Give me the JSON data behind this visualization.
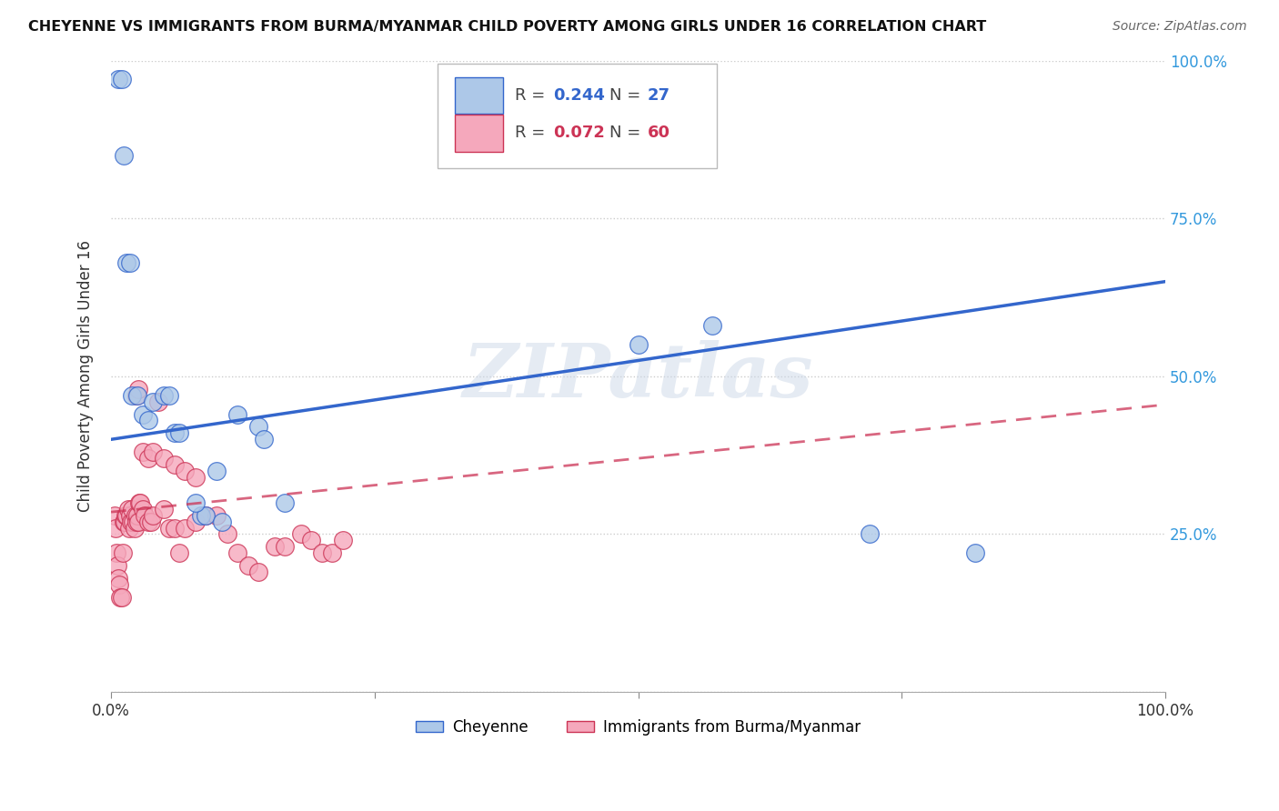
{
  "title": "CHEYENNE VS IMMIGRANTS FROM BURMA/MYANMAR CHILD POVERTY AMONG GIRLS UNDER 16 CORRELATION CHART",
  "source": "Source: ZipAtlas.com",
  "ylabel": "Child Poverty Among Girls Under 16",
  "cheyenne_R": "0.244",
  "cheyenne_N": "27",
  "burma_R": "0.072",
  "burma_N": "60",
  "cheyenne_color": "#adc8e8",
  "burma_color": "#f5a8bc",
  "cheyenne_line_color": "#3366cc",
  "burma_line_color": "#cc3355",
  "watermark": "ZIPatlas",
  "background_color": "#ffffff",
  "xlim": [
    0.0,
    1.0
  ],
  "ylim": [
    0.0,
    1.0
  ],
  "xticks": [
    0.0,
    0.25,
    0.5,
    0.75,
    1.0
  ],
  "yticks": [
    0.0,
    0.25,
    0.5,
    0.75,
    1.0
  ],
  "cheyenne_x": [
    0.007,
    0.01,
    0.012,
    0.015,
    0.018,
    0.02,
    0.025,
    0.03,
    0.035,
    0.04,
    0.05,
    0.055,
    0.06,
    0.065,
    0.085,
    0.09,
    0.105,
    0.12,
    0.14,
    0.145,
    0.165,
    0.5,
    0.57,
    0.72,
    0.82,
    0.1,
    0.08
  ],
  "cheyenne_y": [
    0.97,
    0.97,
    0.85,
    0.68,
    0.68,
    0.47,
    0.47,
    0.44,
    0.43,
    0.46,
    0.47,
    0.47,
    0.41,
    0.41,
    0.28,
    0.28,
    0.27,
    0.44,
    0.42,
    0.4,
    0.3,
    0.55,
    0.58,
    0.25,
    0.22,
    0.35,
    0.3
  ],
  "burma_x": [
    0.003,
    0.004,
    0.005,
    0.006,
    0.007,
    0.008,
    0.009,
    0.01,
    0.011,
    0.012,
    0.013,
    0.014,
    0.015,
    0.016,
    0.017,
    0.018,
    0.019,
    0.02,
    0.021,
    0.022,
    0.023,
    0.024,
    0.025,
    0.026,
    0.027,
    0.028,
    0.03,
    0.032,
    0.035,
    0.038,
    0.04,
    0.045,
    0.05,
    0.055,
    0.06,
    0.065,
    0.07,
    0.08,
    0.09,
    0.1,
    0.11,
    0.12,
    0.13,
    0.14,
    0.155,
    0.165,
    0.18,
    0.19,
    0.2,
    0.21,
    0.22,
    0.024,
    0.026,
    0.03,
    0.035,
    0.04,
    0.05,
    0.06,
    0.07,
    0.08
  ],
  "burma_y": [
    0.28,
    0.26,
    0.22,
    0.2,
    0.18,
    0.17,
    0.15,
    0.15,
    0.22,
    0.27,
    0.27,
    0.28,
    0.28,
    0.29,
    0.26,
    0.28,
    0.27,
    0.29,
    0.27,
    0.26,
    0.28,
    0.27,
    0.28,
    0.27,
    0.3,
    0.3,
    0.29,
    0.28,
    0.27,
    0.27,
    0.28,
    0.46,
    0.29,
    0.26,
    0.26,
    0.22,
    0.26,
    0.27,
    0.28,
    0.28,
    0.25,
    0.22,
    0.2,
    0.19,
    0.23,
    0.23,
    0.25,
    0.24,
    0.22,
    0.22,
    0.24,
    0.47,
    0.48,
    0.38,
    0.37,
    0.38,
    0.37,
    0.36,
    0.35,
    0.34
  ],
  "blue_line_x": [
    0.0,
    1.0
  ],
  "blue_line_y": [
    0.4,
    0.65
  ],
  "pink_line_x": [
    0.0,
    1.0
  ],
  "pink_line_y": [
    0.285,
    0.455
  ]
}
